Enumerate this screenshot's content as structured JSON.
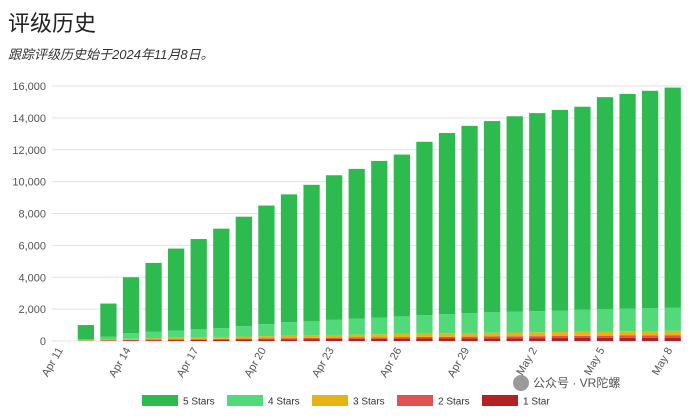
{
  "page": {
    "title": "评级历史",
    "subtitle": "跟踪评级历史始于2024年11月8日。"
  },
  "watermark": "公众号 · VR陀螺",
  "colors": {
    "5 Stars": "#2dba4e",
    "4 Stars": "#52d97a",
    "3 Stars": "#e7b416",
    "2 Stars": "#e05252",
    "1 Star": "#b22222"
  },
  "chart_data": {
    "type": "bar",
    "stacked": true,
    "title": "",
    "xlabel": "",
    "ylabel": "",
    "ylim": [
      0,
      16000
    ],
    "yticks": [
      0,
      2000,
      4000,
      6000,
      8000,
      10000,
      12000,
      14000,
      16000
    ],
    "ytick_labels": [
      "0",
      "2,000",
      "4,000",
      "6,000",
      "8,000",
      "10,000",
      "12,000",
      "14,000",
      "16,000"
    ],
    "grid": true,
    "legend": "bottom",
    "categories": [
      "Apr 11",
      "Apr 12",
      "Apr 13",
      "Apr 14",
      "Apr 15",
      "Apr 16",
      "Apr 17",
      "Apr 18",
      "Apr 19",
      "Apr 20",
      "Apr 21",
      "Apr 22",
      "Apr 23",
      "Apr 24",
      "Apr 25",
      "Apr 26",
      "Apr 27",
      "Apr 28",
      "Apr 29",
      "Apr 30",
      "May 1",
      "May 2",
      "May 3",
      "May 4",
      "May 5",
      "May 6",
      "May 7",
      "May 8"
    ],
    "x_tick_labels": [
      "Apr 11",
      "Apr 14",
      "Apr 17",
      "Apr 20",
      "Apr 23",
      "Apr 26",
      "Apr 29",
      "May 2",
      "May 5",
      "May 8"
    ],
    "series": [
      {
        "name": "1 Star",
        "values": [
          0,
          10,
          25,
          40,
          50,
          60,
          70,
          80,
          90,
          100,
          110,
          120,
          130,
          135,
          140,
          150,
          155,
          160,
          165,
          170,
          175,
          180,
          185,
          190,
          195,
          200,
          205,
          210
        ]
      },
      {
        "name": "2 Stars",
        "values": [
          0,
          10,
          20,
          30,
          40,
          45,
          50,
          55,
          60,
          65,
          70,
          75,
          80,
          85,
          90,
          95,
          100,
          105,
          110,
          115,
          120,
          125,
          130,
          135,
          140,
          145,
          150,
          155
        ]
      },
      {
        "name": "3 Stars",
        "values": [
          0,
          20,
          45,
          70,
          85,
          95,
          110,
          120,
          130,
          140,
          150,
          160,
          170,
          180,
          190,
          200,
          210,
          220,
          230,
          235,
          240,
          245,
          250,
          255,
          260,
          265,
          270,
          275
        ]
      },
      {
        "name": "4 Stars",
        "values": [
          0,
          80,
          180,
          350,
          400,
          450,
          500,
          550,
          650,
          750,
          850,
          900,
          950,
          1000,
          1050,
          1100,
          1150,
          1200,
          1250,
          1280,
          1300,
          1320,
          1350,
          1380,
          1400,
          1420,
          1440,
          1460
        ]
      },
      {
        "name": "5 Stars",
        "values": [
          0,
          880,
          2080,
          3510,
          4325,
          5150,
          5670,
          6245,
          6870,
          7445,
          8020,
          8545,
          9070,
          9400,
          9830,
          10155,
          10885,
          11365,
          11745,
          12000,
          12265,
          12430,
          12585,
          12740,
          13305,
          13470,
          13635,
          13800
        ]
      }
    ]
  }
}
